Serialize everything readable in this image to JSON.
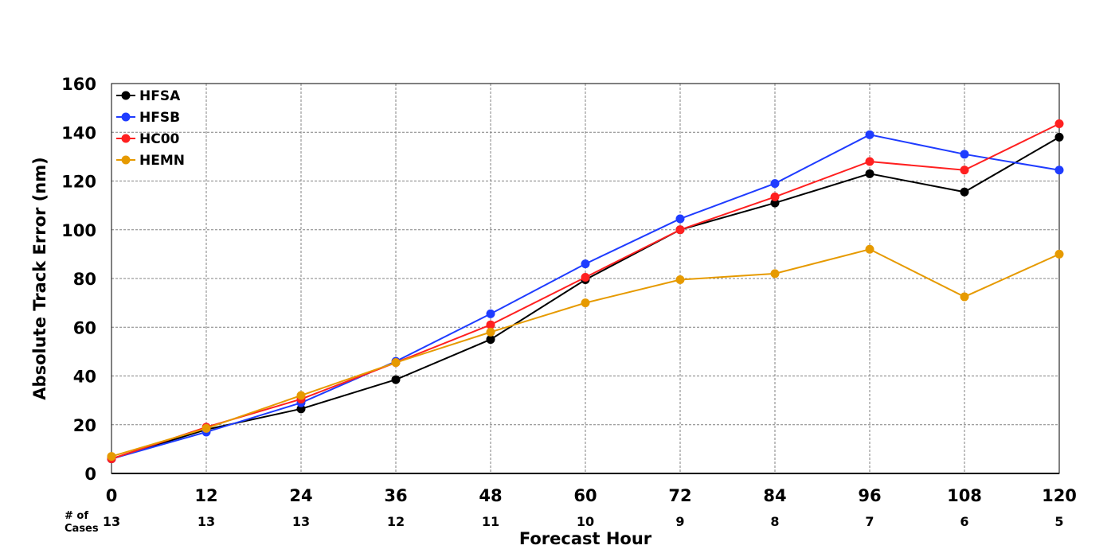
{
  "chart_data": {
    "type": "line",
    "title": "",
    "xlabel": "Forecast Hour",
    "ylabel": "Absolute Track Error (nm)",
    "x": [
      0,
      12,
      24,
      36,
      48,
      60,
      72,
      84,
      96,
      108,
      120
    ],
    "xlim": [
      0,
      120
    ],
    "ylim": [
      0,
      160
    ],
    "yticks": [
      0,
      20,
      40,
      60,
      80,
      100,
      120,
      140,
      160
    ],
    "grid": true,
    "legend_position": "top-left",
    "cases_label_line1": "# of",
    "cases_label_line2": "Cases",
    "cases": [
      13,
      13,
      13,
      12,
      11,
      10,
      9,
      8,
      7,
      6,
      5
    ],
    "series": [
      {
        "name": "HFSA",
        "color": "#000000",
        "values": [
          6,
          18,
          26.5,
          38.5,
          55,
          79.5,
          100,
          111,
          123,
          115.5,
          138
        ]
      },
      {
        "name": "HFSB",
        "color": "#1f3cff",
        "values": [
          6,
          17,
          29,
          46,
          65.5,
          86,
          104.5,
          119,
          139,
          131,
          124.5
        ]
      },
      {
        "name": "HC00",
        "color": "#ff2020",
        "values": [
          6,
          19,
          30.5,
          45.5,
          61,
          80.5,
          100,
          113.5,
          128,
          124.5,
          143.5
        ]
      },
      {
        "name": "HEMN",
        "color": "#e69a00",
        "values": [
          7,
          18.5,
          32,
          45.5,
          58,
          70,
          79.5,
          82,
          92,
          72.5,
          90
        ]
      }
    ]
  }
}
